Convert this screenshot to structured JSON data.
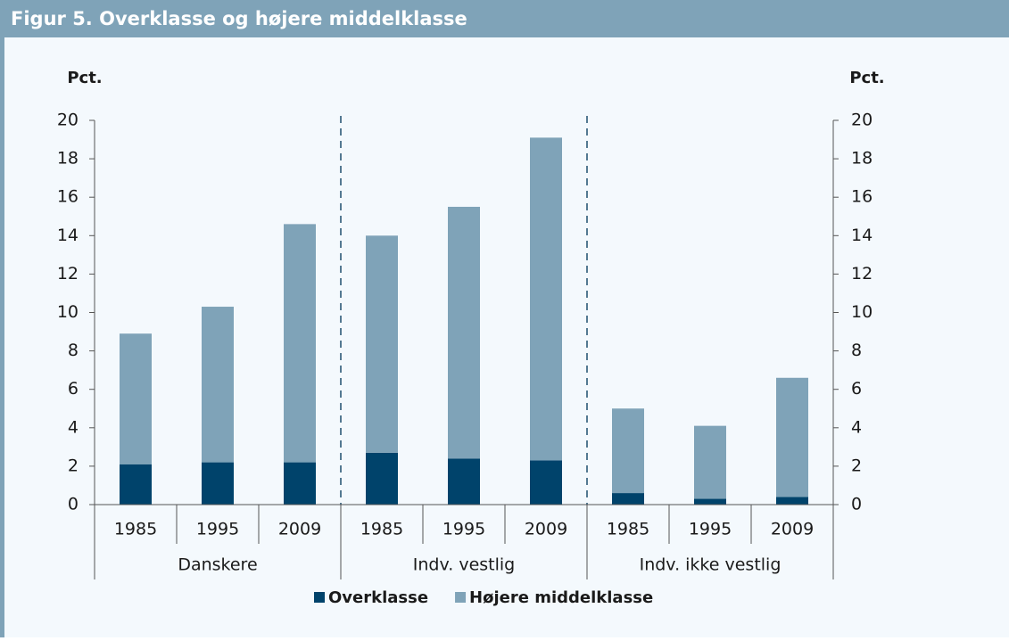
{
  "chart_data": {
    "type": "stacked_bar",
    "title": "Figur 5. Overklasse og højere middelklasse",
    "ylabel": "Pct.",
    "y2label": "Pct.",
    "categories": [
      "1985",
      "1995",
      "2009",
      "1985",
      "1995",
      "2009",
      "1985",
      "1995",
      "2009"
    ],
    "groups": [
      "Danskere",
      "Indv. vestlig",
      "Indv. ikke vestlig"
    ],
    "series": [
      {
        "name": "Overklasse",
        "color": "#00436b",
        "values": [
          2.1,
          2.2,
          2.2,
          2.7,
          2.4,
          2.3,
          0.6,
          0.3,
          0.4
        ]
      },
      {
        "name": "Højere middelklasse",
        "color": "#7fa3b8",
        "values": [
          6.8,
          8.1,
          12.4,
          11.3,
          13.1,
          16.8,
          4.4,
          3.8,
          6.2
        ]
      }
    ],
    "ylim": [
      0,
      20
    ],
    "yticks": [
      0,
      2,
      4,
      6,
      8,
      10,
      12,
      14,
      16,
      18,
      20
    ],
    "y2lim": [
      0,
      20
    ],
    "y2ticks": [
      0,
      2,
      4,
      6,
      8,
      10,
      12,
      14,
      16,
      18,
      20
    ]
  }
}
